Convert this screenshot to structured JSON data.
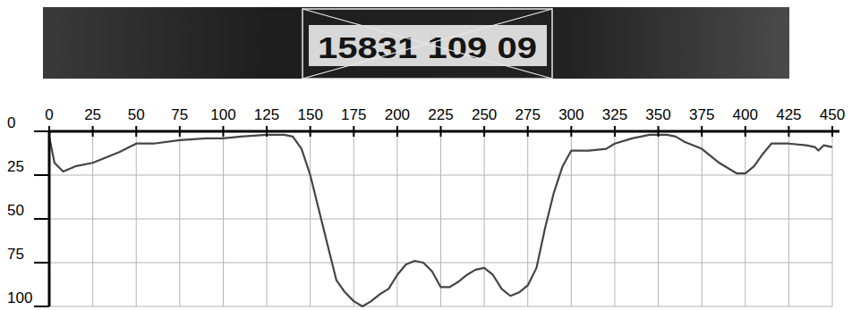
{
  "chart_data": {
    "type": "line",
    "annotations": [
      "15831 109 09"
    ],
    "x": [
      0,
      3,
      8,
      15,
      25,
      40,
      50,
      60,
      75,
      90,
      100,
      110,
      125,
      135,
      140,
      145,
      150,
      155,
      160,
      165,
      170,
      175,
      180,
      185,
      190,
      195,
      200,
      205,
      210,
      215,
      220,
      225,
      230,
      235,
      240,
      245,
      250,
      255,
      260,
      265,
      270,
      275,
      280,
      285,
      290,
      295,
      300,
      310,
      320,
      325,
      335,
      345,
      355,
      360,
      365,
      375,
      385,
      395,
      400,
      405,
      410,
      415,
      425,
      435,
      440,
      442,
      445,
      450
    ],
    "values": [
      3,
      18,
      23,
      20,
      18,
      12,
      7,
      7,
      5,
      4,
      4,
      3,
      2,
      2,
      3,
      10,
      25,
      45,
      65,
      85,
      92,
      97,
      100,
      97,
      93,
      90,
      82,
      76,
      74,
      75,
      80,
      89,
      89,
      86,
      82,
      79,
      78,
      82,
      90,
      94,
      92,
      88,
      78,
      55,
      35,
      20,
      11,
      11,
      10,
      7,
      4,
      2,
      2,
      3,
      6,
      10,
      18,
      24,
      24,
      20,
      13,
      7,
      7,
      8,
      9,
      11,
      8,
      9
    ],
    "color": "#454545",
    "xlim": [
      0,
      450
    ],
    "xticks": [
      0,
      25,
      50,
      75,
      100,
      125,
      150,
      175,
      200,
      225,
      250,
      275,
      300,
      325,
      350,
      375,
      400,
      425,
      450
    ],
    "ylim": [
      100,
      0
    ],
    "yticks": [
      0,
      25,
      50,
      75,
      100
    ],
    "grid": true
  }
}
